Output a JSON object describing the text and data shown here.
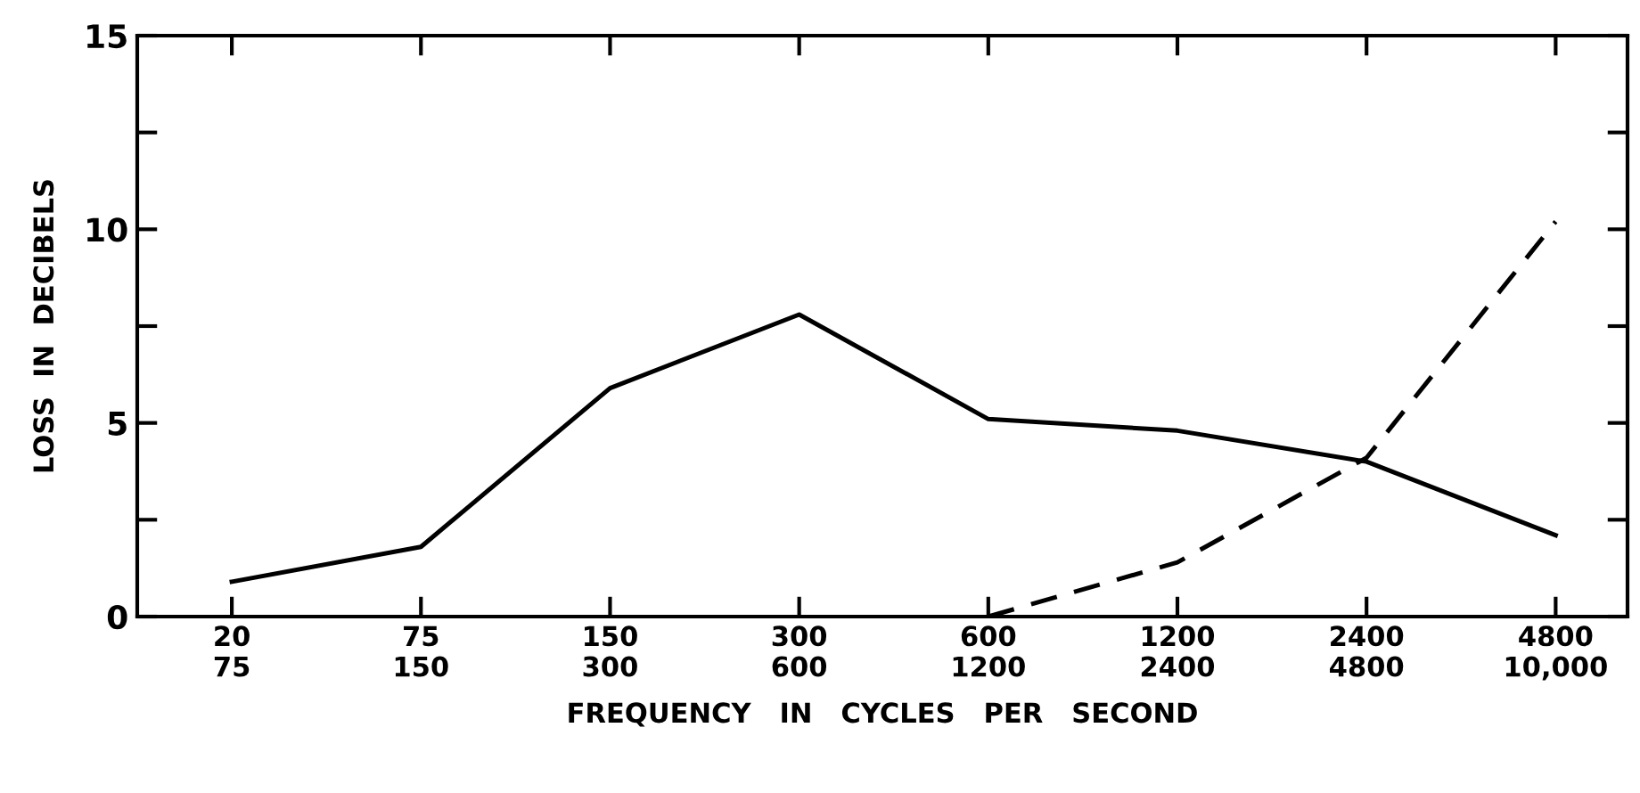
{
  "chart_data": {
    "type": "line",
    "xlabel": "FREQUENCY   IN   CYCLES   PER   SECOND",
    "ylabel": "LOSS  IN  DECIBELS",
    "categories": [
      "20\n75",
      "75\n150",
      "150\n300",
      "300\n600",
      "600\n1200",
      "1200\n2400",
      "2400\n4800",
      "4800\n10,000"
    ],
    "series": [
      {
        "color": "#000000",
        "line_style": "solid",
        "values": [
          0.9,
          1.8,
          5.9,
          7.8,
          5.1,
          4.8,
          4,
          2.1
        ]
      },
      {
        "color": "#000000",
        "line_style": "dashed",
        "values": [
          null,
          null,
          null,
          null,
          0,
          1.4,
          4.1,
          10.2
        ]
      }
    ],
    "ylim": [
      0,
      15
    ],
    "yticks": [
      0,
      {
        "value": 2.5,
        "label": null
      },
      5,
      {
        "value": 7.5,
        "label": null
      },
      10,
      {
        "value": 12.5,
        "label": null
      },
      15
    ],
    "grid": false,
    "legend": false,
    "marker": "none"
  }
}
